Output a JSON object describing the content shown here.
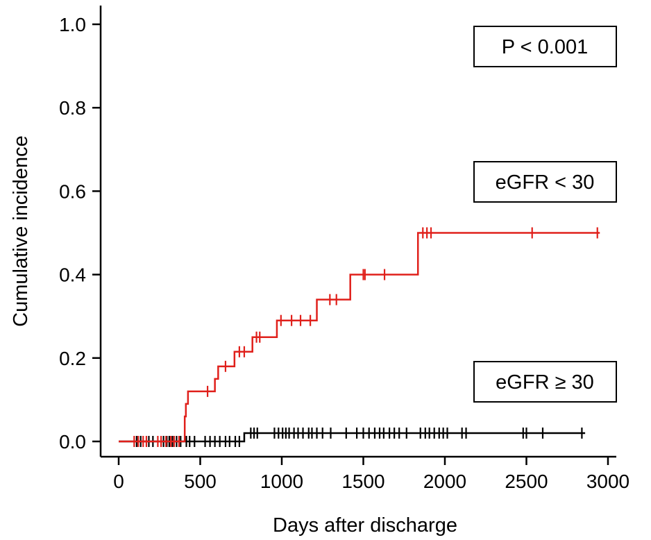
{
  "chart_data": {
    "type": "line",
    "subtype": "cumulative-incidence-step",
    "xlabel": "Days after discharge",
    "ylabel": "Cumulative incidence",
    "xlim": [
      0,
      3000
    ],
    "ylim": [
      0,
      1.0
    ],
    "x_ticks": [
      0,
      500,
      1000,
      1500,
      2000,
      2500,
      3000
    ],
    "y_ticks": [
      "0.0",
      "0.2",
      "0.4",
      "0.6",
      "0.8",
      "1.0"
    ],
    "grid": false,
    "legend": "none",
    "annotations": [
      {
        "id": "pvalue",
        "text": "P < 0.001"
      },
      {
        "id": "label-low",
        "text": "eGFR < 30"
      },
      {
        "id": "label-high",
        "text": "eGFR ≥ 30"
      }
    ],
    "series": [
      {
        "color": "#e0201b",
        "steps": [
          [
            0,
            0.0
          ],
          [
            405,
            0.06
          ],
          [
            412,
            0.09
          ],
          [
            425,
            0.12
          ],
          [
            590,
            0.15
          ],
          [
            610,
            0.18
          ],
          [
            710,
            0.215
          ],
          [
            820,
            0.25
          ],
          [
            970,
            0.29
          ],
          [
            1215,
            0.34
          ],
          [
            1420,
            0.4
          ],
          [
            1835,
            0.5
          ],
          [
            2950,
            0.5
          ]
        ],
        "censor": [
          95,
          120,
          150,
          170,
          240,
          260,
          290,
          320,
          340,
          370,
          545,
          655,
          740,
          770,
          845,
          865,
          995,
          1060,
          1115,
          1175,
          1295,
          1335,
          1500,
          1510,
          1630,
          1865,
          1890,
          1915,
          2535,
          2935
        ]
      },
      {
        "color": "#000000",
        "steps": [
          [
            0,
            0.0
          ],
          [
            770,
            0.02
          ],
          [
            2860,
            0.02
          ]
        ],
        "censor": [
          110,
          135,
          185,
          210,
          275,
          295,
          310,
          330,
          355,
          380,
          415,
          435,
          465,
          530,
          560,
          590,
          620,
          655,
          680,
          715,
          740,
          810,
          830,
          850,
          955,
          980,
          1005,
          1025,
          1045,
          1075,
          1100,
          1130,
          1165,
          1185,
          1215,
          1250,
          1300,
          1395,
          1460,
          1500,
          1535,
          1570,
          1600,
          1625,
          1660,
          1690,
          1720,
          1765,
          1850,
          1880,
          1905,
          1935,
          1965,
          1990,
          2015,
          2105,
          2130,
          2480,
          2500,
          2600,
          2840
        ]
      }
    ]
  }
}
